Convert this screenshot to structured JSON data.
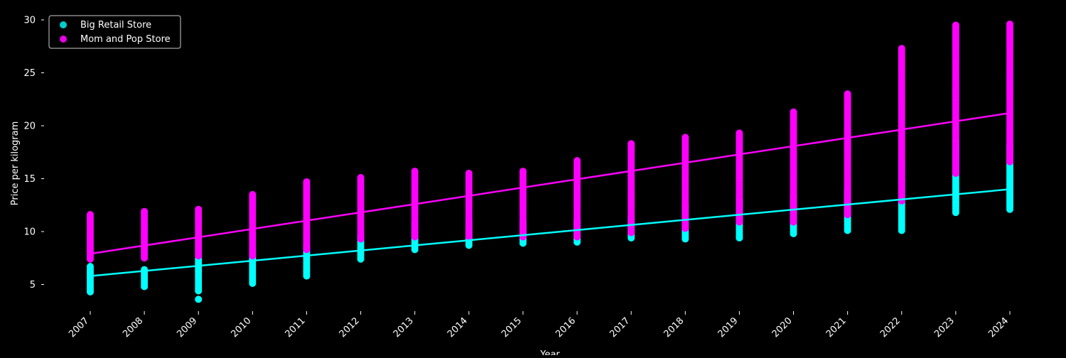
{
  "chart_data": {
    "type": "scatter",
    "xlabel": "Year",
    "ylabel": "Price per kilogram",
    "x_ticks": [
      "2007",
      "2008",
      "2009",
      "2010",
      "2011",
      "2012",
      "2013",
      "2014",
      "2015",
      "2016",
      "2017",
      "2018",
      "2019",
      "2020",
      "2021",
      "2022",
      "2023",
      "2024"
    ],
    "y_ticks": [
      "5",
      "10",
      "15",
      "20",
      "25",
      "30"
    ],
    "xlim": [
      2006.2,
      2024.6
    ],
    "ylim": [
      2.5,
      30.5
    ],
    "grid": false,
    "legend_position": "top-left",
    "background": "#000000",
    "series": [
      {
        "name": "Big Retail Store",
        "color": "#00ffff",
        "ranges": [
          {
            "x": 2007,
            "min": 4.3,
            "max": 6.7
          },
          {
            "x": 2008,
            "min": 4.8,
            "max": 6.5
          },
          {
            "x": 2009,
            "min": 4.4,
            "max": 7.4
          },
          {
            "x": 2010,
            "min": 5.1,
            "max": 8.1
          },
          {
            "x": 2011,
            "min": 5.8,
            "max": 8.6
          },
          {
            "x": 2012,
            "min": 7.4,
            "max": 9.6
          },
          {
            "x": 2013,
            "min": 8.3,
            "max": 11.0
          },
          {
            "x": 2014,
            "min": 8.7,
            "max": 11.0
          },
          {
            "x": 2015,
            "min": 8.9,
            "max": 11.0
          },
          {
            "x": 2016,
            "min": 9.0,
            "max": 11.0
          },
          {
            "x": 2017,
            "min": 9.4,
            "max": 11.5
          },
          {
            "x": 2018,
            "min": 9.3,
            "max": 12.5
          },
          {
            "x": 2019,
            "min": 9.4,
            "max": 13.0
          },
          {
            "x": 2020,
            "min": 9.8,
            "max": 13.5
          },
          {
            "x": 2021,
            "min": 10.1,
            "max": 14.0
          },
          {
            "x": 2022,
            "min": 10.1,
            "max": 16.8
          },
          {
            "x": 2023,
            "min": 11.8,
            "max": 18.7
          },
          {
            "x": 2024,
            "min": 12.1,
            "max": 18.2
          }
        ],
        "outliers": [
          {
            "x": 2009,
            "y": 3.6
          }
        ],
        "trend": {
          "x": [
            2007,
            2024
          ],
          "y": [
            5.8,
            14.0
          ]
        }
      },
      {
        "name": "Mom and Pop Store",
        "color": "#ff00ff",
        "ranges": [
          {
            "x": 2007,
            "min": 7.4,
            "max": 11.7
          },
          {
            "x": 2008,
            "min": 7.5,
            "max": 12.0
          },
          {
            "x": 2009,
            "min": 7.7,
            "max": 12.2
          },
          {
            "x": 2010,
            "min": 7.7,
            "max": 13.5
          },
          {
            "x": 2011,
            "min": 8.3,
            "max": 14.7
          },
          {
            "x": 2012,
            "min": 9.3,
            "max": 15.1
          },
          {
            "x": 2013,
            "min": 9.5,
            "max": 15.7
          },
          {
            "x": 2014,
            "min": 9.5,
            "max": 15.6
          },
          {
            "x": 2015,
            "min": 9.5,
            "max": 15.8
          },
          {
            "x": 2016,
            "min": 9.5,
            "max": 16.7
          },
          {
            "x": 2017,
            "min": 9.9,
            "max": 18.3
          },
          {
            "x": 2018,
            "min": 10.3,
            "max": 18.9
          },
          {
            "x": 2019,
            "min": 10.9,
            "max": 19.4
          },
          {
            "x": 2020,
            "min": 10.9,
            "max": 21.3
          },
          {
            "x": 2021,
            "min": 11.6,
            "max": 23.1
          },
          {
            "x": 2022,
            "min": 12.9,
            "max": 27.4
          },
          {
            "x": 2023,
            "min": 15.5,
            "max": 29.5
          },
          {
            "x": 2024,
            "min": 16.6,
            "max": 29.6
          }
        ],
        "outliers": [],
        "trend": {
          "x": [
            2007,
            2024
          ],
          "y": [
            7.9,
            21.2
          ]
        }
      }
    ]
  }
}
